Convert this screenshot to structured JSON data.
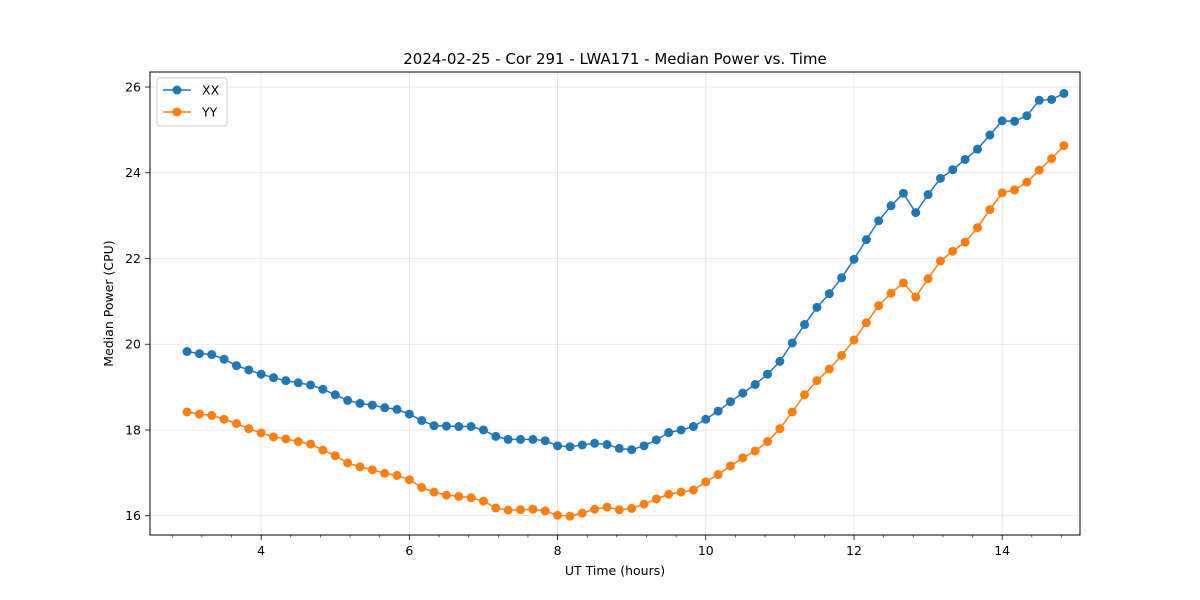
{
  "chart_data": {
    "type": "line",
    "title": "2024-02-25 - Cor 291 - LWA171 - Median Power vs. Time",
    "xlabel": "UT Time (hours)",
    "ylabel": "Median Power (CPU)",
    "xlim": [
      2.5,
      15.05
    ],
    "ylim": [
      15.55,
      26.35
    ],
    "xticks": [
      4,
      6,
      8,
      10,
      12,
      14
    ],
    "yticks": [
      16,
      18,
      20,
      22,
      24,
      26
    ],
    "grid": true,
    "legend_position": "top-left",
    "x": [
      3.0,
      3.167,
      3.333,
      3.5,
      3.667,
      3.833,
      4.0,
      4.167,
      4.333,
      4.5,
      4.667,
      4.833,
      5.0,
      5.167,
      5.333,
      5.5,
      5.667,
      5.833,
      6.0,
      6.167,
      6.333,
      6.5,
      6.667,
      6.833,
      7.0,
      7.167,
      7.333,
      7.5,
      7.667,
      7.833,
      8.0,
      8.167,
      8.333,
      8.5,
      8.667,
      8.833,
      9.0,
      9.167,
      9.333,
      9.5,
      9.667,
      9.833,
      10.0,
      10.167,
      10.333,
      10.5,
      10.667,
      10.833,
      11.0,
      11.167,
      11.333,
      11.5,
      11.667,
      11.833,
      12.0,
      12.167,
      12.333,
      12.5,
      12.667,
      12.833,
      13.0,
      13.167,
      13.333,
      13.5,
      13.667,
      13.833,
      14.0,
      14.167,
      14.333,
      14.5,
      14.667,
      14.833
    ],
    "series": [
      {
        "name": "XX",
        "color": "#1f77b4",
        "values": [
          19.83,
          19.78,
          19.76,
          19.65,
          19.5,
          19.4,
          19.3,
          19.22,
          19.15,
          19.1,
          19.05,
          18.95,
          18.82,
          18.69,
          18.62,
          18.58,
          18.52,
          18.48,
          18.37,
          18.22,
          18.1,
          18.09,
          18.08,
          18.08,
          18.0,
          17.85,
          17.78,
          17.78,
          17.78,
          17.75,
          17.63,
          17.61,
          17.65,
          17.69,
          17.66,
          17.57,
          17.54,
          17.63,
          17.77,
          17.94,
          18.0,
          18.08,
          18.25,
          18.44,
          18.66,
          18.86,
          19.06,
          19.3,
          19.6,
          20.03,
          20.46,
          20.86,
          21.18,
          21.55,
          21.98,
          22.44,
          22.88,
          23.23,
          23.52,
          23.07,
          23.49,
          23.87,
          24.07,
          24.31,
          24.55,
          24.88,
          25.21,
          25.2,
          25.33,
          25.69,
          25.71,
          25.85
        ]
      },
      {
        "name": "YY",
        "color": "#ff7f0e",
        "values": [
          18.42,
          18.37,
          18.34,
          18.25,
          18.15,
          18.03,
          17.93,
          17.84,
          17.79,
          17.73,
          17.67,
          17.53,
          17.4,
          17.23,
          17.14,
          17.07,
          16.99,
          16.94,
          16.84,
          16.66,
          16.55,
          16.48,
          16.45,
          16.42,
          16.34,
          16.18,
          16.13,
          16.14,
          16.15,
          16.11,
          16.01,
          15.99,
          16.06,
          16.15,
          16.2,
          16.14,
          16.17,
          16.27,
          16.39,
          16.5,
          16.55,
          16.6,
          16.79,
          16.96,
          17.16,
          17.35,
          17.51,
          17.73,
          18.03,
          18.42,
          18.82,
          19.15,
          19.42,
          19.74,
          20.1,
          20.5,
          20.9,
          21.19,
          21.43,
          21.1,
          21.53,
          21.94,
          22.17,
          22.38,
          22.72,
          23.14,
          23.53,
          23.6,
          23.78,
          24.06,
          24.33,
          24.63
        ]
      }
    ]
  }
}
